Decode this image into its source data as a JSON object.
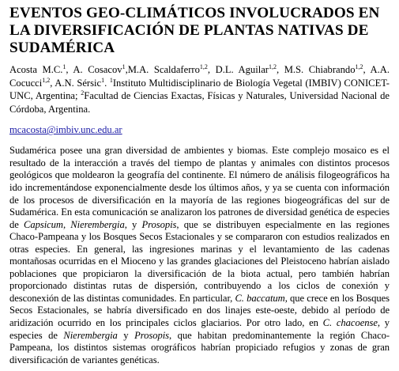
{
  "title": "EVENTOS GEO-CLIMÁTICOS INVOLUCRADOS EN LA DIVERSIFICACIÓN DE PLANTAS NATIVAS DE SUDAMÉRICA",
  "authors": {
    "a1": "Acosta M.C.",
    "a1_sup": "1",
    "a2": ", A. Cosacov",
    "a2_sup": "1",
    "a3": ",M.A. Scaldaferro",
    "a3_sup": "1,2",
    "a4": ", D.L. Aguilar",
    "a4_sup": "1,2",
    "a5": ", M.S. Chiabrando",
    "a5_sup": "1,2",
    "a6": ", A.A. Cocucci",
    "a6_sup": "1,2",
    "a7": ", A.N. Sérsic",
    "a7_sup": "1",
    "aff1_sep": ". ",
    "aff1_sup": "1",
    "aff1": "Instituto Multidisciplinario de Biología Vegetal (IMBIV) CONICET-UNC, Argentina; ",
    "aff2_sup": "2",
    "aff2": "Facultad de Ciencias Exactas, Físicas y Naturales, Universidad Nacional de Córdoba, Argentina."
  },
  "email": "mcacosta@imbiv.unc.edu.ar",
  "abstract": {
    "p1": "Sudamérica posee una gran diversidad de ambientes y biomas. Este complejo mosaico es el resultado de la interacción a través del tiempo de plantas y animales con distintos procesos geológicos que moldearon la geografía del continente. El número de análisis filogeográficos ha ido incrementándose exponencialmente desde los últimos años, y ya se cuenta con información de los procesos de diversificación en la mayoría de las regiones biogeográficas del sur de Sudamérica. En esta comunicación se analizaron los patrones de diversidad genética de especies de ",
    "sp1": "Capsicum",
    "p2": ", ",
    "sp2": "Nierembergia",
    "p3": ", y ",
    "sp3": "Prosopis",
    "p4": ", que se distribuyen especialmente en las regiones Chaco-Pampeana y los Bosques Secos Estacionales y se compararon con estudios realizados en otras especies. En general, las ingresiones marinas y el levantamiento de las cadenas montañosas ocurridas en el Mioceno y las grandes glaciaciones del Pleistoceno habrían aislado poblaciones que propiciaron la diversificación de la biota actual, pero también habrían proporcionado distintas rutas de dispersión, contribuyendo a los ciclos de conexión y desconexión de las distintas comunidades. En particular, ",
    "sp4": "C. baccatum",
    "p5": ", que crece en los Bosques Secos Estacionales, se habría diversificado en dos linajes este-oeste, debido al período de aridización ocurrido en los principales ciclos glaciarios. Por otro lado, en ",
    "sp5": "C. chacoense",
    "p6": ", y especies de ",
    "sp6": "Nierembergia",
    "p7": " y ",
    "sp7": "Prosopis",
    "p8": ", que habitan predominantemente la región Chaco-Pampeana, los distintos sistemas orográficos habrían propiciado refugios y zonas de gran diversificación de variantes genéticas."
  },
  "colors": {
    "text": "#000000",
    "link": "#1a1aa6",
    "background": "#ffffff"
  }
}
